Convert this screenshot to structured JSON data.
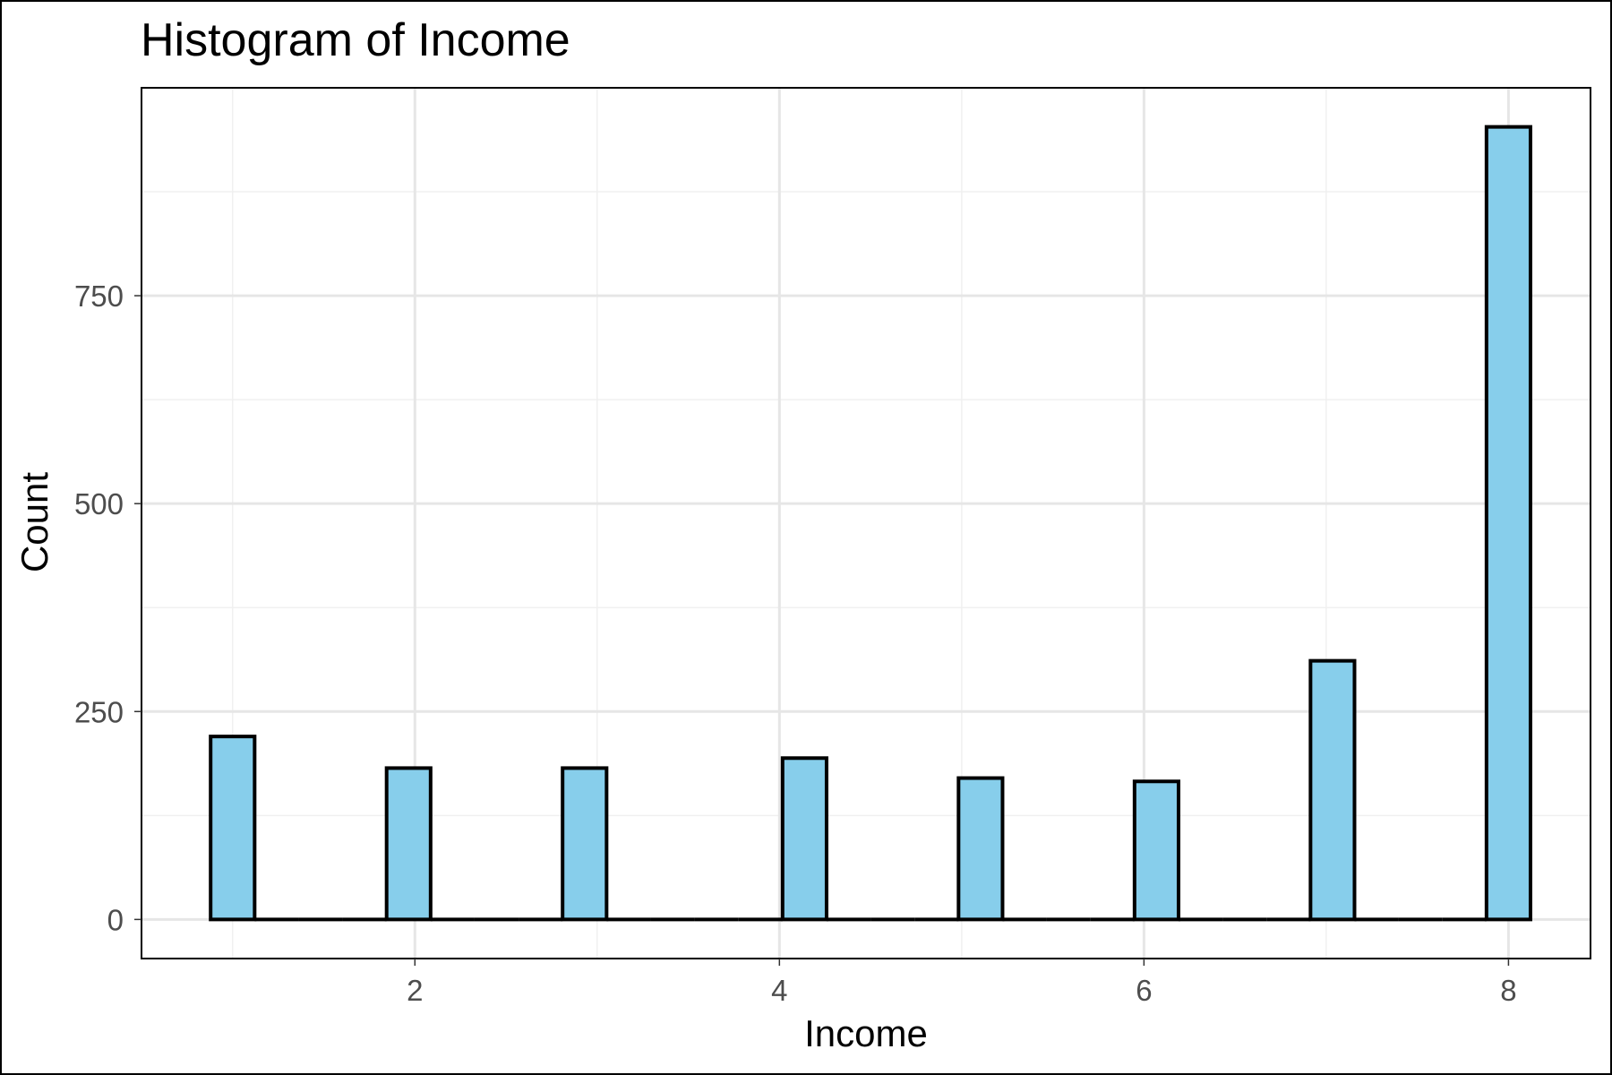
{
  "chart_data": {
    "type": "bar",
    "title": "Histogram of Income",
    "xlabel": "Income",
    "ylabel": "Count",
    "x_ticks": [
      2,
      4,
      6,
      8
    ],
    "y_ticks": [
      0,
      250,
      500,
      750
    ],
    "xlim": [
      0.5,
      8.45
    ],
    "ylim": [
      -47,
      1000
    ],
    "bin_width": 0.2414,
    "bins": [
      {
        "x": 1,
        "count": 220
      },
      {
        "x": 1.2414,
        "count": 0
      },
      {
        "x": 1.4828,
        "count": 0
      },
      {
        "x": 1.7241,
        "count": 0
      },
      {
        "x": 1.9655,
        "count": 182
      },
      {
        "x": 2.2069,
        "count": 0
      },
      {
        "x": 2.4483,
        "count": 0
      },
      {
        "x": 2.6897,
        "count": 0
      },
      {
        "x": 2.931,
        "count": 182
      },
      {
        "x": 3.1724,
        "count": 0
      },
      {
        "x": 3.4138,
        "count": 0
      },
      {
        "x": 3.6552,
        "count": 0
      },
      {
        "x": 3.8966,
        "count": 0
      },
      {
        "x": 4.1379,
        "count": 194
      },
      {
        "x": 4.3793,
        "count": 0
      },
      {
        "x": 4.6207,
        "count": 0
      },
      {
        "x": 4.8621,
        "count": 0
      },
      {
        "x": 5.1034,
        "count": 170
      },
      {
        "x": 5.3448,
        "count": 0
      },
      {
        "x": 5.5862,
        "count": 0
      },
      {
        "x": 5.8276,
        "count": 0
      },
      {
        "x": 6.069,
        "count": 166
      },
      {
        "x": 6.3103,
        "count": 0
      },
      {
        "x": 6.5517,
        "count": 0
      },
      {
        "x": 6.7931,
        "count": 0
      },
      {
        "x": 7.0345,
        "count": 311
      },
      {
        "x": 7.2759,
        "count": 0
      },
      {
        "x": 7.5172,
        "count": 0
      },
      {
        "x": 7.7586,
        "count": 0
      },
      {
        "x": 8,
        "count": 953
      }
    ],
    "grid": true,
    "colors": {
      "fill": "#87CEEB",
      "outline": "#000000",
      "grid_major": "#e6e6e6",
      "grid_minor": "#f0f0f0",
      "tick_label": "#4d4d4d"
    }
  }
}
